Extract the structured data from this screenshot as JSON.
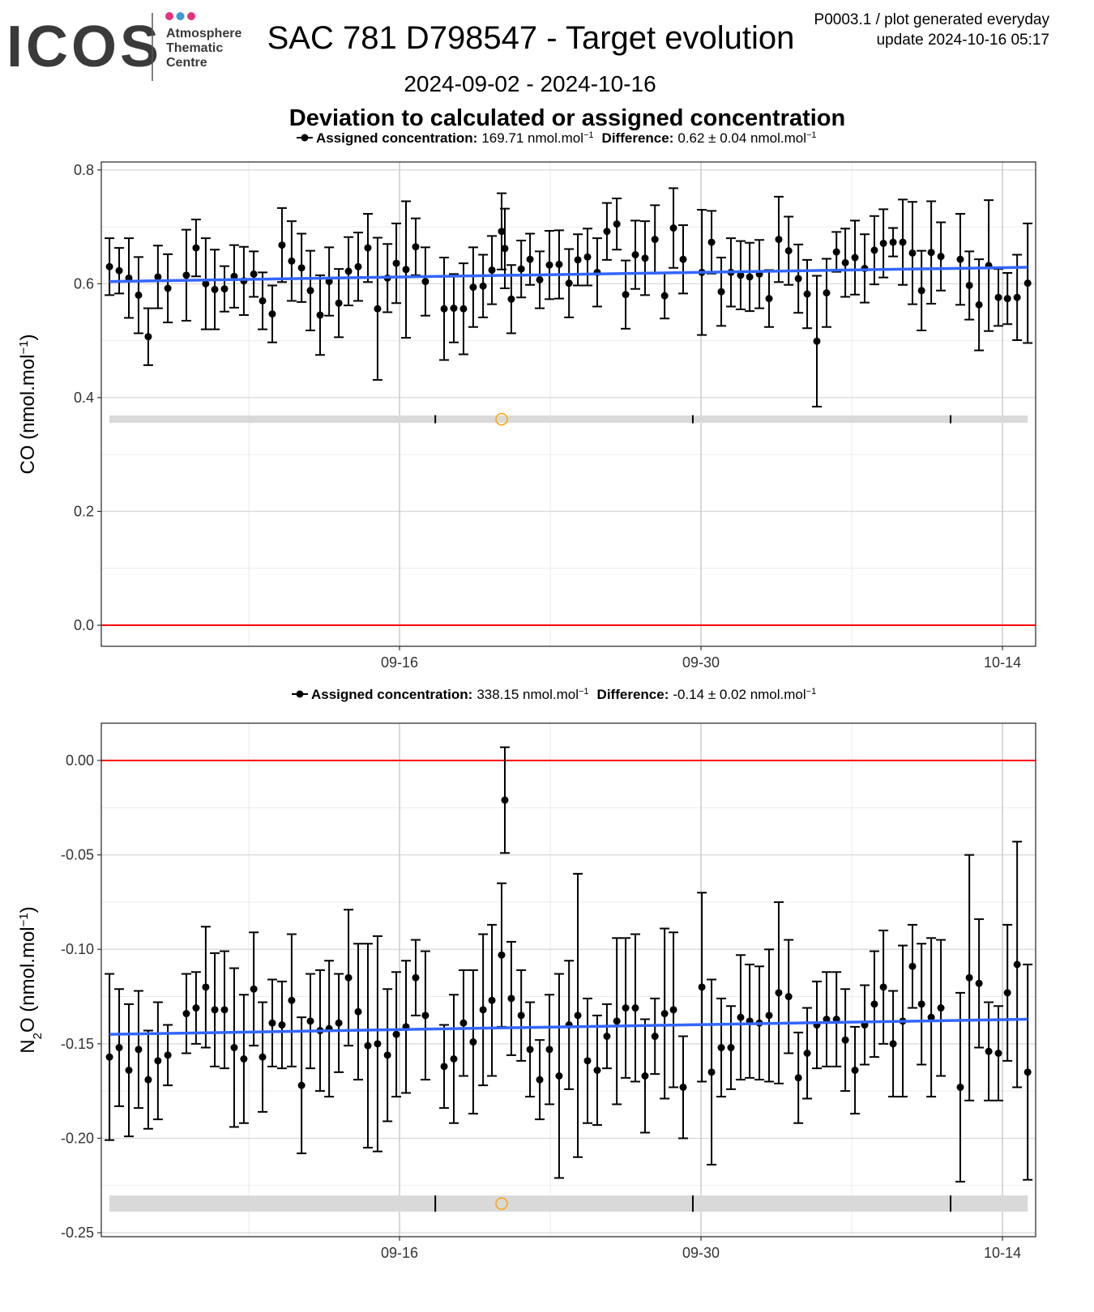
{
  "header": {
    "logo": "ICOS",
    "logo_lines": [
      "Atmosphere",
      "Thematic",
      "Centre"
    ],
    "logo_dot_colors": [
      "#e6317d",
      "#3a9bd9",
      "#e6317d"
    ],
    "title": "SAC 781 D798547 - Target evolution",
    "date_range": "2024-09-02 - 2024-10-16",
    "note": "P0003.1 / plot generated everyday",
    "update": "update  2024-10-16 05:17",
    "heading": "Deviation to calculated or assigned concentration"
  },
  "chart_data": [
    {
      "type": "scatter",
      "color": "#000000",
      "ylabel": [
        "CO (nmol.mol",
        "−1",
        ")"
      ],
      "legend": {
        "assigned_label": "Assigned concentration:",
        "assigned_value": "169.71 nmol.mol",
        "assigned_exp": "−1",
        "difference_label": "Difference:",
        "difference_value": "0.62 ± 0.04 nmol.mol",
        "difference_exp": "−1"
      },
      "x": [
        2.53,
        2.98,
        3.43,
        3.88,
        4.33,
        4.78,
        5.24,
        6.1,
        6.55,
        7.0,
        7.42,
        7.87,
        8.32,
        8.77,
        9.23,
        9.64,
        10.09,
        10.54,
        10.99,
        11.45,
        11.86,
        12.31,
        12.73,
        13.18,
        13.63,
        14.08,
        14.53,
        14.98,
        15.44,
        15.85,
        16.3,
        16.75,
        17.2,
        18.07,
        18.52,
        18.97,
        19.42,
        19.88,
        20.29,
        20.74,
        20.89,
        21.19,
        21.65,
        22.06,
        22.51,
        22.96,
        23.41,
        23.87,
        24.28,
        24.73,
        25.18,
        25.63,
        26.09,
        26.5,
        26.95,
        27.4,
        27.86,
        28.31,
        28.72,
        29.17,
        30.04,
        30.49,
        30.94,
        31.39,
        31.84,
        32.26,
        32.71,
        33.16,
        33.61,
        34.07,
        34.52,
        34.93,
        35.38,
        35.83,
        36.29,
        36.7,
        37.15,
        37.6,
        38.05,
        38.47,
        38.92,
        39.37,
        39.82,
        40.24,
        40.69,
        41.14,
        42.04,
        42.46,
        42.91,
        43.36,
        43.81,
        44.23,
        44.68,
        45.17
      ],
      "values": [
        0.63,
        0.623,
        0.61,
        0.58,
        0.507,
        0.612,
        0.592,
        0.615,
        0.663,
        0.6,
        0.59,
        0.591,
        0.613,
        0.605,
        0.617,
        0.57,
        0.547,
        0.668,
        0.64,
        0.628,
        0.588,
        0.545,
        0.604,
        0.566,
        0.622,
        0.63,
        0.663,
        0.556,
        0.61,
        0.636,
        0.625,
        0.665,
        0.604,
        0.556,
        0.557,
        0.556,
        0.594,
        0.596,
        0.624,
        0.692,
        0.662,
        0.573,
        0.626,
        0.643,
        0.607,
        0.633,
        0.634,
        0.601,
        0.642,
        0.647,
        0.62,
        0.692,
        0.705,
        0.581,
        0.651,
        0.645,
        0.678,
        0.579,
        0.698,
        0.643,
        0.62,
        0.673,
        0.586,
        0.62,
        0.615,
        0.612,
        0.617,
        0.574,
        0.678,
        0.658,
        0.609,
        0.582,
        0.499,
        0.584,
        0.656,
        0.637,
        0.646,
        0.627,
        0.659,
        0.671,
        0.673,
        0.673,
        0.654,
        0.588,
        0.655,
        0.648,
        0.643,
        0.597,
        0.563,
        0.632,
        0.576,
        0.574,
        0.576,
        0.601
      ],
      "errors": [
        0.05,
        0.04,
        0.07,
        0.067,
        0.05,
        0.055,
        0.06,
        0.08,
        0.05,
        0.08,
        0.07,
        0.04,
        0.055,
        0.06,
        0.04,
        0.05,
        0.05,
        0.065,
        0.07,
        0.06,
        0.07,
        0.07,
        0.06,
        0.06,
        0.06,
        0.06,
        0.06,
        0.125,
        0.06,
        0.07,
        0.12,
        0.05,
        0.06,
        0.09,
        0.06,
        0.08,
        0.07,
        0.055,
        0.06,
        0.067,
        0.07,
        0.06,
        0.05,
        0.045,
        0.05,
        0.06,
        0.06,
        0.06,
        0.045,
        0.05,
        0.06,
        0.05,
        0.045,
        0.06,
        0.06,
        0.065,
        0.06,
        0.04,
        0.07,
        0.06,
        0.11,
        0.055,
        0.06,
        0.06,
        0.06,
        0.06,
        0.06,
        0.05,
        0.075,
        0.06,
        0.06,
        0.06,
        0.115,
        0.06,
        0.035,
        0.06,
        0.065,
        0.06,
        0.06,
        0.06,
        0.025,
        0.075,
        0.09,
        0.07,
        0.09,
        0.06,
        0.08,
        0.06,
        0.08,
        0.115,
        0.05,
        0.045,
        0.075,
        0.105
      ],
      "trend_line": {
        "color": "#3366ff",
        "x": [
          2.53,
          45.17
        ],
        "values": [
          0.604,
          0.629
        ]
      },
      "reference_line": {
        "value": 0,
        "color": "#ff0000"
      },
      "timeline": {
        "y": 0.362,
        "ticks": [
          17.66,
          29.62,
          41.59
        ],
        "marker": 20.74,
        "marker_color": "#ffa500"
      },
      "xlim": [
        2.15,
        45.54
      ],
      "xticks": [
        {
          "value": 16,
          "label": "09-16"
        },
        {
          "value": 30,
          "label": "09-30"
        },
        {
          "value": 44,
          "label": "10-14"
        }
      ],
      "xminor": [
        9,
        23,
        37
      ],
      "ylim": [
        -0.037,
        0.814
      ],
      "yticks": [
        {
          "value": 0,
          "label": "0.0"
        },
        0.2,
        0.4,
        0.6,
        0.8
      ],
      "yminor": [
        0.1,
        0.3,
        0.5,
        0.7
      ],
      "grid": true
    },
    {
      "type": "scatter",
      "color": "#000000",
      "ylabel": [
        "N",
        "2",
        "O (nmol.mol",
        "−1",
        ")"
      ],
      "legend": {
        "assigned_label": "Assigned concentration:",
        "assigned_value": "338.15 nmol.mol",
        "assigned_exp": "−1",
        "difference_label": "Difference:",
        "difference_value": "-0.14 ± 0.02 nmol.mol",
        "difference_exp": "−1"
      },
      "x": [
        2.53,
        2.98,
        3.43,
        3.88,
        4.33,
        4.78,
        5.24,
        6.1,
        6.55,
        7.0,
        7.42,
        7.87,
        8.32,
        8.77,
        9.23,
        9.64,
        10.09,
        10.54,
        10.99,
        11.45,
        11.86,
        12.31,
        12.73,
        13.18,
        13.63,
        14.08,
        14.53,
        14.98,
        15.44,
        15.85,
        16.3,
        16.75,
        17.2,
        18.07,
        18.52,
        18.97,
        19.42,
        19.88,
        20.29,
        20.74,
        20.89,
        21.19,
        21.65,
        22.06,
        22.51,
        22.96,
        23.41,
        23.87,
        24.28,
        24.73,
        25.18,
        25.63,
        26.09,
        26.5,
        26.95,
        27.4,
        27.86,
        28.31,
        28.72,
        29.17,
        30.04,
        30.49,
        30.94,
        31.39,
        31.84,
        32.26,
        32.71,
        33.16,
        33.61,
        34.07,
        34.52,
        34.93,
        35.38,
        35.83,
        36.29,
        36.7,
        37.15,
        37.6,
        38.05,
        38.47,
        38.92,
        39.37,
        39.82,
        40.24,
        40.69,
        41.14,
        42.04,
        42.46,
        42.91,
        43.36,
        43.81,
        44.23,
        44.68,
        45.17
      ],
      "values": [
        -0.157,
        -0.152,
        -0.164,
        -0.153,
        -0.169,
        -0.159,
        -0.156,
        -0.134,
        -0.131,
        -0.12,
        -0.132,
        -0.132,
        -0.152,
        -0.158,
        -0.121,
        -0.157,
        -0.139,
        -0.14,
        -0.127,
        -0.172,
        -0.138,
        -0.143,
        -0.142,
        -0.139,
        -0.115,
        -0.133,
        -0.151,
        -0.15,
        -0.156,
        -0.145,
        -0.141,
        -0.115,
        -0.135,
        -0.162,
        -0.158,
        -0.139,
        -0.149,
        -0.132,
        -0.127,
        -0.103,
        -0.021,
        -0.126,
        -0.135,
        -0.153,
        -0.169,
        -0.153,
        -0.167,
        -0.14,
        -0.135,
        -0.159,
        -0.164,
        -0.146,
        -0.138,
        -0.131,
        -0.131,
        -0.167,
        -0.146,
        -0.134,
        -0.132,
        -0.173,
        -0.12,
        -0.165,
        -0.152,
        -0.152,
        -0.136,
        -0.138,
        -0.139,
        -0.135,
        -0.123,
        -0.125,
        -0.168,
        -0.155,
        -0.14,
        -0.137,
        -0.137,
        -0.148,
        -0.164,
        -0.14,
        -0.129,
        -0.12,
        -0.15,
        -0.138,
        -0.109,
        -0.129,
        -0.136,
        -0.131,
        -0.173,
        -0.115,
        -0.118,
        -0.154,
        -0.155,
        -0.123,
        -0.108,
        -0.165
      ],
      "errors": [
        0.044,
        0.031,
        0.035,
        0.031,
        0.026,
        0.031,
        0.016,
        0.021,
        0.019,
        0.032,
        0.03,
        0.031,
        0.042,
        0.034,
        0.03,
        0.029,
        0.023,
        0.023,
        0.035,
        0.036,
        0.025,
        0.032,
        0.036,
        0.026,
        0.036,
        0.036,
        0.054,
        0.057,
        0.035,
        0.033,
        0.035,
        0.02,
        0.034,
        0.022,
        0.034,
        0.028,
        0.038,
        0.04,
        0.04,
        0.038,
        0.028,
        0.03,
        0.024,
        0.025,
        0.021,
        0.029,
        0.054,
        0.034,
        0.075,
        0.033,
        0.029,
        0.017,
        0.044,
        0.037,
        0.039,
        0.03,
        0.02,
        0.045,
        0.041,
        0.027,
        0.05,
        0.049,
        0.026,
        0.022,
        0.033,
        0.03,
        0.03,
        0.035,
        0.048,
        0.03,
        0.024,
        0.024,
        0.023,
        0.025,
        0.025,
        0.027,
        0.023,
        0.021,
        0.028,
        0.03,
        0.028,
        0.04,
        0.022,
        0.032,
        0.042,
        0.036,
        0.05,
        0.065,
        0.034,
        0.026,
        0.025,
        0.036,
        0.065,
        0.057
      ],
      "trend_line": {
        "color": "#3366ff",
        "x": [
          2.53,
          45.17
        ],
        "values": [
          -0.145,
          -0.137
        ]
      },
      "reference_line": {
        "value": 0,
        "color": "#ff0000"
      },
      "timeline": {
        "y": -0.2346,
        "ticks": [
          17.66,
          29.62,
          41.59
        ],
        "marker": 20.74,
        "marker_color": "#ffa500"
      },
      "xlim": [
        2.15,
        45.54
      ],
      "xticks": [
        {
          "value": 16,
          "label": "09-16"
        },
        {
          "value": 30,
          "label": "09-30"
        },
        {
          "value": 44,
          "label": "10-14"
        }
      ],
      "xminor": [
        9,
        23,
        37
      ],
      "ylim": [
        -0.2521,
        0.0197
      ],
      "yticks": [
        -0.25,
        {
          "value": -0.2,
          "label": "-0.20"
        },
        -0.15,
        {
          "value": -0.1,
          "label": "-0.10"
        },
        -0.05,
        {
          "value": 0,
          "label": "0.00"
        }
      ],
      "yminor": [
        -0.225,
        -0.175,
        -0.125,
        -0.075,
        -0.025
      ],
      "grid": true
    }
  ]
}
